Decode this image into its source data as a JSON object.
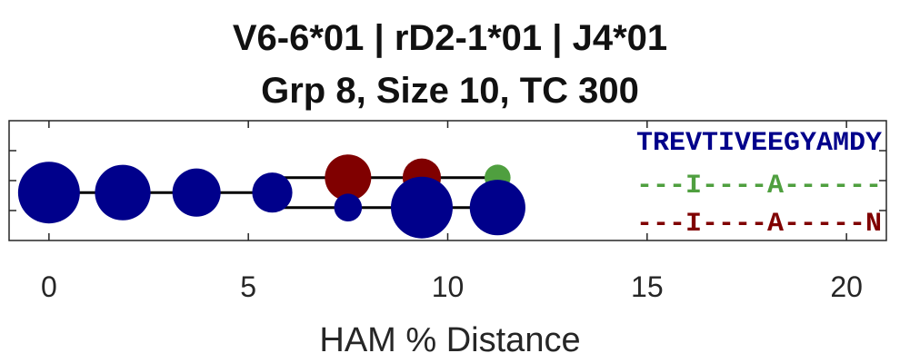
{
  "chart_data": {
    "type": "scatter",
    "title_line1": "V6-6*01 | rD2-1*01 | J4*01",
    "title_line2": "Grp 8, Size 10, TC 300",
    "xlabel": "HAM % Distance",
    "ylabel": "",
    "xlim": [
      -1,
      21
    ],
    "ylim": [
      0,
      4
    ],
    "x_ticks": [
      0,
      5,
      10,
      15,
      20
    ],
    "x_tick_labels": [
      "0",
      "5",
      "10",
      "15",
      "20"
    ],
    "y_ticks": [
      1,
      2,
      3
    ],
    "grid": false,
    "colors": {
      "blue": "#00008B",
      "red": "#800000",
      "green": "#4F9F3F",
      "line": "#000000",
      "axis": "#262626"
    },
    "nodes": [
      {
        "id": 1,
        "x": 0.0,
        "y": 1.6,
        "size": 1.0,
        "color": "blue"
      },
      {
        "id": 2,
        "x": 1.85,
        "y": 1.6,
        "size": 0.9,
        "color": "blue"
      },
      {
        "id": 3,
        "x": 3.7,
        "y": 1.6,
        "size": 0.78,
        "color": "blue"
      },
      {
        "id": 4,
        "x": 5.6,
        "y": 1.6,
        "size": 0.65,
        "color": "blue"
      },
      {
        "id": 5,
        "x": 7.5,
        "y": 2.1,
        "size": 0.75,
        "color": "red"
      },
      {
        "id": 6,
        "x": 9.35,
        "y": 2.1,
        "size": 0.62,
        "color": "red"
      },
      {
        "id": 7,
        "x": 11.25,
        "y": 2.1,
        "size": 0.42,
        "color": "green"
      },
      {
        "id": 8,
        "x": 7.5,
        "y": 1.1,
        "size": 0.45,
        "color": "blue"
      },
      {
        "id": 9,
        "x": 9.35,
        "y": 1.1,
        "size": 1.0,
        "color": "blue"
      },
      {
        "id": 10,
        "x": 11.25,
        "y": 1.1,
        "size": 0.9,
        "color": "blue"
      }
    ],
    "edges": [
      {
        "points": [
          [
            0.0,
            1.6
          ],
          [
            5.6,
            1.6
          ]
        ]
      },
      {
        "points": [
          [
            5.6,
            1.6
          ],
          [
            5.6,
            2.1
          ],
          [
            11.25,
            2.1
          ]
        ]
      },
      {
        "points": [
          [
            5.6,
            1.6
          ],
          [
            5.6,
            1.1
          ],
          [
            11.25,
            1.1
          ]
        ]
      }
    ],
    "sequences": [
      {
        "text": "TREVTIVEEGYAMDY",
        "color": "blue"
      },
      {
        "text": "---I----A------",
        "color": "green"
      },
      {
        "text": "---I----A-----N",
        "color": "red"
      }
    ]
  }
}
